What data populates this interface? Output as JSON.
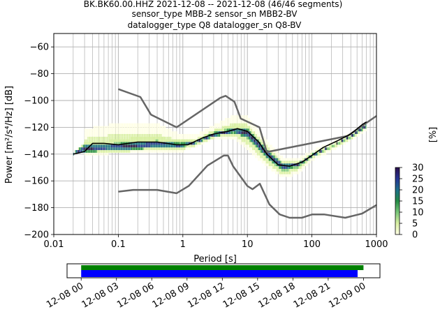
{
  "title_lines": [
    "BK.BK60.00.HHZ   2021-12-08 -- 2021-12-08  (46/46 segments)",
    "sensor_type MBB-2 sensor_sn MBB2-BV",
    "datalogger_type Q8 datalogger_sn Q8-BV"
  ],
  "chart_data": [
    {
      "type": "heatmap",
      "xlabel": "Period [s]",
      "ylabel": "Power [m²/s⁴/Hz] [dB]",
      "xscale": "log",
      "xlim": [
        0.01,
        1000
      ],
      "ylim": [
        -200,
        -50
      ],
      "x_ticks": [
        {
          "value": 0.01,
          "label": "0.01"
        },
        {
          "value": 0.1,
          "label": "0.1"
        },
        {
          "value": 1,
          "label": "1"
        },
        {
          "value": 10,
          "label": "10"
        },
        {
          "value": 100,
          "label": "100"
        },
        {
          "value": 1000,
          "label": "1000"
        }
      ],
      "y_ticks": [
        -60,
        -80,
        -100,
        -120,
        -140,
        -160,
        -180,
        -200
      ],
      "grid": true,
      "colorbar": {
        "label": "[%]",
        "range": [
          0,
          30
        ],
        "ticks": [
          0,
          5,
          10,
          15,
          20,
          25,
          30
        ],
        "colors": [
          "#ffffe5",
          "#d9f0a3",
          "#78c679",
          "#238b45",
          "#1d6f8a",
          "#253494",
          "#2b0f4b"
        ]
      },
      "series": [
        {
          "role": "new-high-noise-model",
          "color": "#666666",
          "x": [
            0.1,
            0.22,
            0.32,
            0.8,
            3.8,
            4.6,
            6.3,
            7.9,
            15.4,
            20.0,
            354.8,
            1000
          ],
          "y": [
            -91.5,
            -97.4,
            -110.5,
            -120.0,
            -98.0,
            -96.5,
            -101.0,
            -113.5,
            -120.0,
            -138.5,
            -126.5,
            -111.5
          ]
        },
        {
          "role": "new-low-noise-model",
          "color": "#666666",
          "x": [
            0.1,
            0.17,
            0.4,
            0.8,
            1.24,
            2.4,
            4.3,
            5.0,
            6.0,
            10.0,
            12.0,
            15.6,
            21.9,
            31.6,
            45.0,
            70.0,
            101.0,
            154.0,
            328.0,
            600.0,
            1000
          ],
          "y": [
            -168.0,
            -166.7,
            -166.7,
            -169.2,
            -163.7,
            -148.6,
            -141.1,
            -141.1,
            -149.0,
            -163.8,
            -166.2,
            -162.1,
            -177.5,
            -185.0,
            -187.5,
            -187.5,
            -185.0,
            -185.0,
            -187.5,
            -184.4,
            -178.0
          ]
        },
        {
          "role": "mean",
          "color": "#000000",
          "x": [
            0.02,
            0.025,
            0.03,
            0.04,
            0.06,
            0.1,
            0.2,
            0.4,
            0.8,
            1.2,
            2,
            3,
            5,
            7,
            10,
            15,
            20,
            30,
            45,
            70,
            100,
            150,
            250,
            400,
            600,
            700
          ],
          "y": [
            -140,
            -139,
            -138,
            -132,
            -132,
            -133,
            -131,
            -131,
            -133,
            -133,
            -128,
            -125,
            -123,
            -121,
            -123,
            -131,
            -140,
            -148,
            -149,
            -146,
            -141,
            -135,
            -130,
            -125,
            -118,
            -116
          ]
        }
      ],
      "density_bands": [
        {
          "x": [
            0.03,
            0.07,
            0.15,
            0.4,
            0.9,
            1.5,
            3,
            6,
            10,
            20,
            35,
            60,
            100,
            200,
            400,
            700
          ],
          "y_low": [
            -141,
            -140,
            -139,
            -139,
            -139,
            -135,
            -129,
            -128,
            -137,
            -150,
            -158,
            -155,
            -145,
            -138,
            -130,
            -122
          ],
          "y_high": [
            -121,
            -118,
            -116,
            -117,
            -125,
            -126,
            -118,
            -111,
            -112,
            -130,
            -142,
            -143,
            -137,
            -131,
            -124,
            -116
          ],
          "max_percent": 3
        },
        {
          "x": [
            0.02,
            0.03,
            0.07,
            0.15,
            0.4,
            0.9,
            1.5,
            3,
            6,
            10,
            20,
            35,
            60,
            100,
            200,
            400,
            700
          ],
          "y_low": [
            -140,
            -139,
            -138,
            -138,
            -137,
            -137,
            -134,
            -128,
            -126,
            -133,
            -147,
            -156,
            -152,
            -143,
            -136,
            -129,
            -120
          ],
          "y_high": [
            -139,
            -131,
            -130,
            -128,
            -127,
            -130,
            -130,
            -122,
            -118,
            -118,
            -134,
            -146,
            -146,
            -139,
            -133,
            -125,
            -116
          ],
          "max_percent": 10
        },
        {
          "x": [
            0.02,
            0.03,
            0.07,
            0.15,
            0.4,
            0.9,
            1.5,
            3,
            6,
            10,
            20,
            35,
            60,
            100,
            200,
            400,
            700
          ],
          "y_low": [
            -140,
            -139,
            -137,
            -137,
            -135,
            -135,
            -132,
            -127,
            -124,
            -128,
            -143,
            -152,
            -149,
            -142,
            -134,
            -127,
            -120
          ],
          "y_high": [
            -139,
            -133,
            -133,
            -131,
            -130,
            -132,
            -131,
            -124,
            -121,
            -121,
            -137,
            -147,
            -147,
            -140,
            -134,
            -126,
            -117
          ],
          "max_percent": 30
        }
      ]
    },
    {
      "type": "bar",
      "role": "data-coverage",
      "x_ticks": [
        "12-08 00",
        "12-08 03",
        "12-08 06",
        "12-08 09",
        "12-08 12",
        "12-08 15",
        "12-08 18",
        "12-08 21",
        "12-09 00"
      ],
      "xlim_hours": [
        -1.2,
        25.4
      ],
      "series": [
        {
          "role": "psd-segments",
          "color": "#008000",
          "start_hour": 0,
          "end_hour": 24.0
        },
        {
          "role": "data",
          "color": "#0000ff",
          "start_hour": 0,
          "end_hour": 23.5
        }
      ]
    }
  ]
}
